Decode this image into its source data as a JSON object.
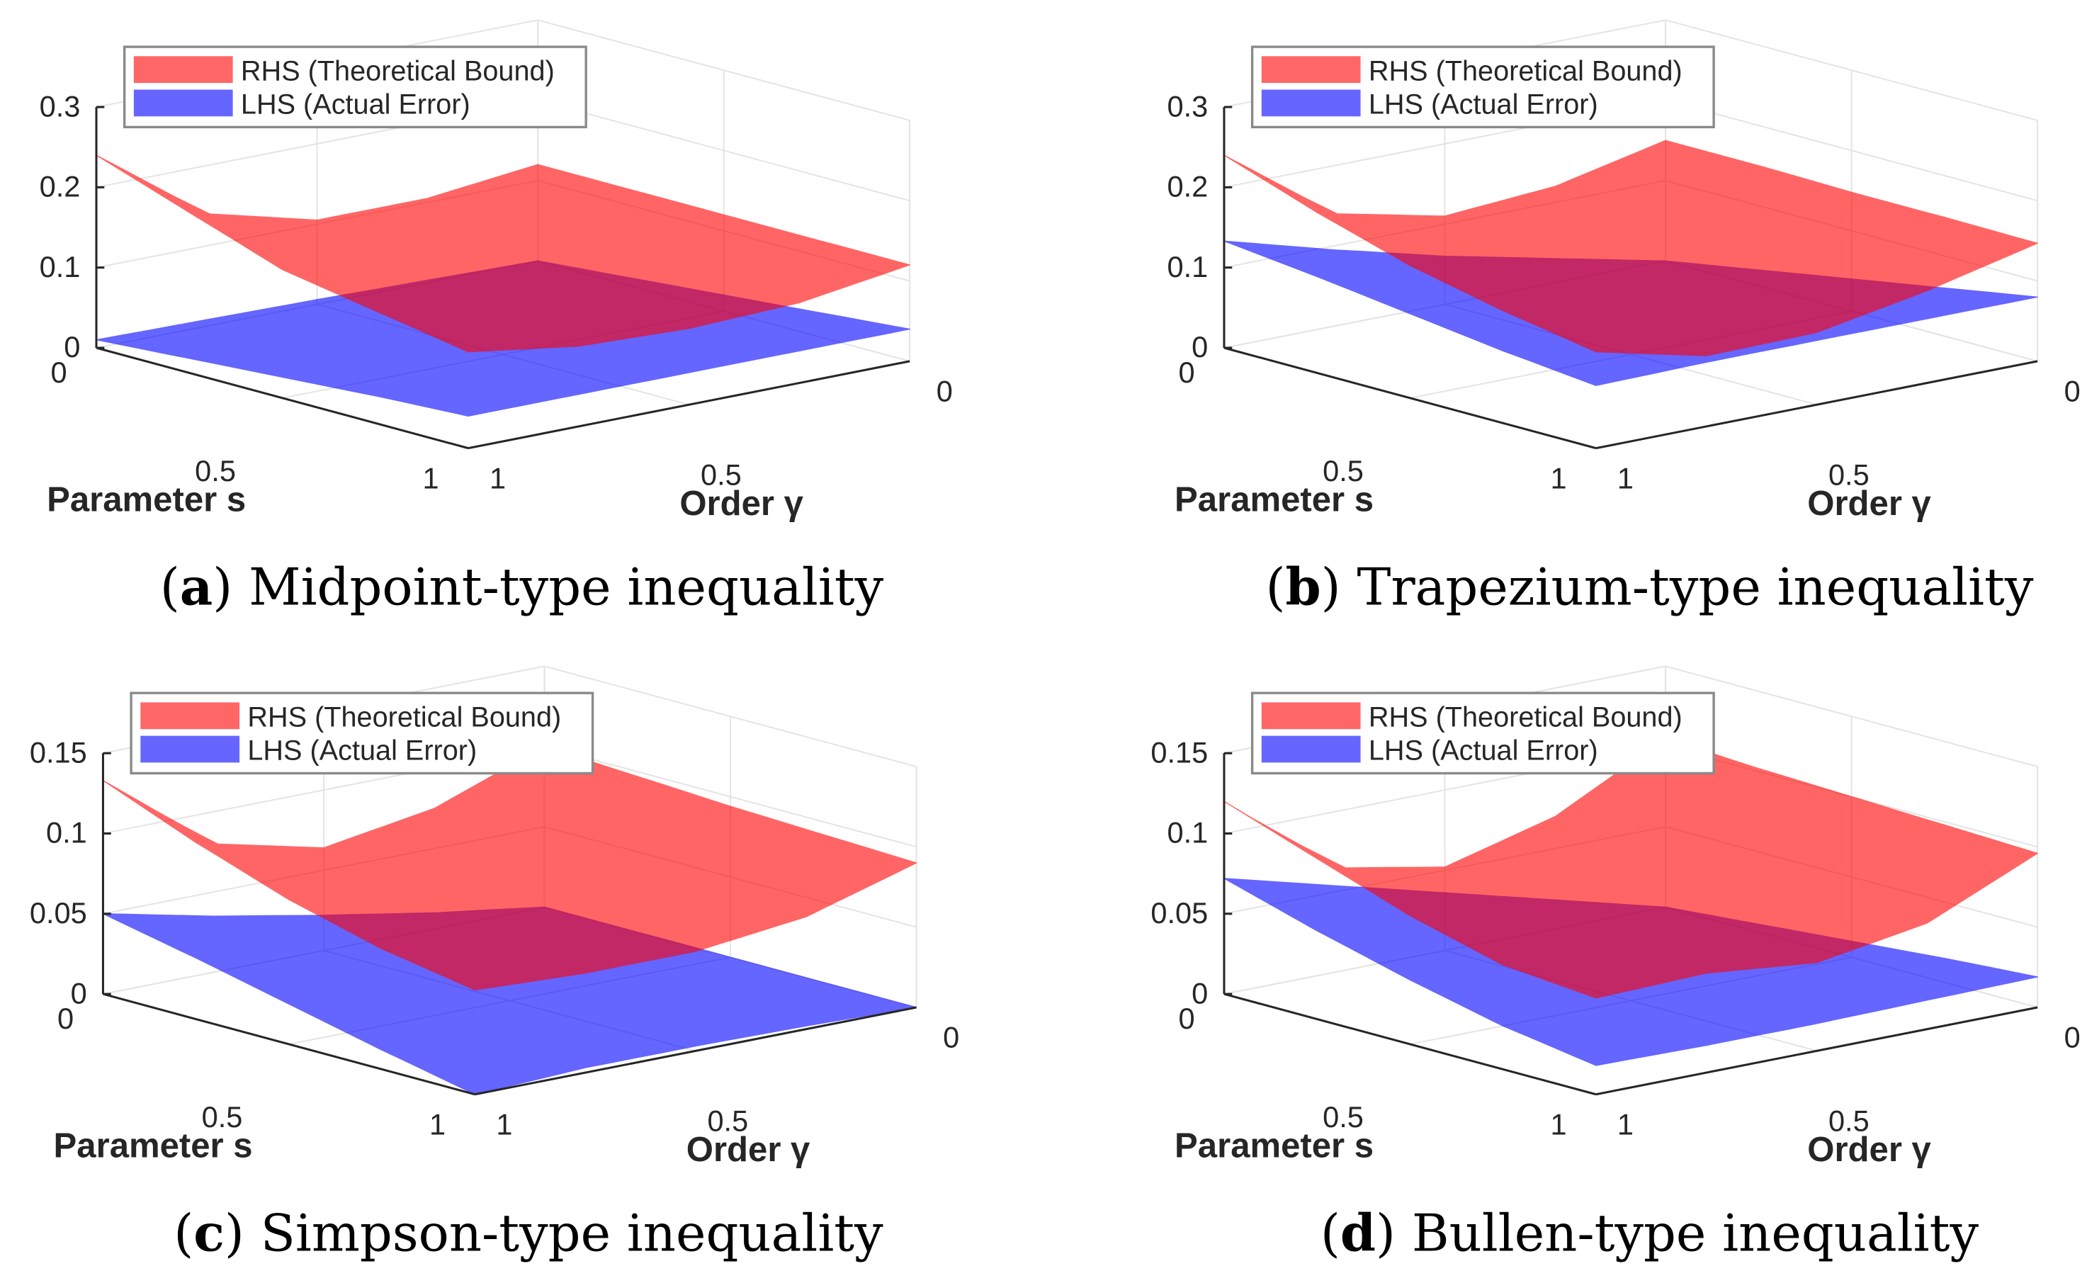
{
  "colors": {
    "rhs": "#ff0000",
    "lhs": "#0000ff",
    "surface_alpha": 0.6
  },
  "legend": {
    "rhs": "RHS (Theoretical Bound)",
    "lhs": "LHS (Actual Error)"
  },
  "chart_data": [
    {
      "type": "surface",
      "label": "a",
      "title": "Midpoint-type inequality",
      "xlabel": "Parameter s",
      "ylabel": "Order γ",
      "s_values": [
        0,
        0.25,
        0.5,
        0.75,
        1
      ],
      "gamma_values": [
        0,
        0.25,
        0.5,
        0.75,
        1
      ],
      "s_ticks": [
        "0",
        "0.5",
        "1"
      ],
      "gamma_ticks": [
        "0",
        "0.5",
        "1"
      ],
      "zlim": [
        0,
        0.3
      ],
      "z_ticks": [
        {
          "v": 0,
          "t": "0"
        },
        {
          "v": 0.1,
          "t": "0.1"
        },
        {
          "v": 0.2,
          "t": "0.2"
        },
        {
          "v": 0.3,
          "t": "0.3"
        }
      ],
      "legend_position": "top-left",
      "series": [
        {
          "name": "RHS (Theoretical Bound)",
          "z": [
            [
              0.12,
              0.105,
              0.105,
              0.14,
              0.24
            ],
            [
              0.12,
              0.1,
              0.1,
              0.12,
              0.2
            ],
            [
              0.12,
              0.1,
              0.095,
              0.11,
              0.16
            ],
            [
              0.12,
              0.1,
              0.095,
              0.1,
              0.14
            ],
            [
              0.12,
              0.1,
              0.095,
              0.1,
              0.12
            ]
          ]
        },
        {
          "name": "LHS (Actual Error)",
          "z": [
            [
              0,
              0.003,
              0.006,
              0.008,
              0.01
            ],
            [
              0.01,
              0.012,
              0.014,
              0.016,
              0.018
            ],
            [
              0.02,
              0.021,
              0.023,
              0.025,
              0.026
            ],
            [
              0.03,
              0.031,
              0.032,
              0.033,
              0.034
            ],
            [
              0.04,
              0.04,
              0.04,
              0.04,
              0.04
            ]
          ]
        }
      ]
    },
    {
      "type": "surface",
      "label": "b",
      "title": "Trapezium-type inequality",
      "xlabel": "Parameter s",
      "ylabel": "Order γ",
      "s_values": [
        0,
        0.25,
        0.5,
        0.75,
        1
      ],
      "gamma_values": [
        0,
        0.25,
        0.5,
        0.75,
        1
      ],
      "s_ticks": [
        "0",
        "0.5",
        "1"
      ],
      "gamma_ticks": [
        "0",
        "0.5",
        "1"
      ],
      "zlim": [
        0,
        0.3
      ],
      "z_ticks": [
        {
          "v": 0,
          "t": "0"
        },
        {
          "v": 0.1,
          "t": "0.1"
        },
        {
          "v": 0.2,
          "t": "0.2"
        },
        {
          "v": 0.3,
          "t": "0.3"
        }
      ],
      "legend_position": "top-left",
      "series": [
        {
          "name": "RHS (Theoretical Bound)",
          "z": [
            [
              0.15,
              0.12,
              0.11,
              0.14,
              0.24
            ],
            [
              0.15,
              0.12,
              0.105,
              0.12,
              0.2
            ],
            [
              0.148,
              0.115,
              0.1,
              0.105,
              0.165
            ],
            [
              0.148,
              0.115,
              0.095,
              0.095,
              0.14
            ],
            [
              0.147,
              0.115,
              0.09,
              0.088,
              0.12
            ]
          ]
        },
        {
          "name": "LHS (Actual Error)",
          "z": [
            [
              0,
              0.03,
              0.06,
              0.095,
              0.133
            ],
            [
              0.02,
              0.04,
              0.065,
              0.09,
              0.12
            ],
            [
              0.04,
              0.055,
              0.07,
              0.085,
              0.105
            ],
            [
              0.06,
              0.068,
              0.075,
              0.082,
              0.09
            ],
            [
              0.08,
              0.08,
              0.08,
              0.08,
              0.078
            ]
          ]
        }
      ]
    },
    {
      "type": "surface",
      "label": "c",
      "title": "Simpson-type inequality",
      "xlabel": "Parameter s",
      "ylabel": "Order γ",
      "s_values": [
        0,
        0.25,
        0.5,
        0.75,
        1
      ],
      "gamma_values": [
        0,
        0.25,
        0.5,
        0.75,
        1
      ],
      "s_ticks": [
        "0",
        "0.5",
        "1"
      ],
      "gamma_ticks": [
        "0",
        "0.5",
        "1"
      ],
      "zlim": [
        0,
        0.15
      ],
      "z_ticks": [
        {
          "v": 0,
          "t": "0"
        },
        {
          "v": 0.05,
          "t": "0.05"
        },
        {
          "v": 0.1,
          "t": "0.1"
        },
        {
          "v": 0.15,
          "t": "0.15"
        }
      ],
      "legend_position": "top-left",
      "series": [
        {
          "name": "RHS (Theoretical Bound)",
          "z": [
            [
              0.1,
              0.075,
              0.064,
              0.08,
              0.133
            ],
            [
              0.097,
              0.072,
              0.062,
              0.07,
              0.11
            ],
            [
              0.094,
              0.07,
              0.06,
              0.064,
              0.09
            ],
            [
              0.092,
              0.07,
              0.06,
              0.062,
              0.075
            ],
            [
              0.09,
              0.07,
              0.062,
              0.062,
              0.065
            ]
          ]
        },
        {
          "name": "LHS (Actual Error)",
          "z": [
            [
              0,
              0.01,
              0.022,
              0.035,
              0.05
            ],
            [
              0,
              0.008,
              0.017,
              0.027,
              0.038
            ],
            [
              0,
              0.005,
              0.011,
              0.018,
              0.025
            ],
            [
              0,
              0.003,
              0.006,
              0.009,
              0.012
            ],
            [
              0,
              0.002,
              0.003,
              0.003,
              0
            ]
          ]
        }
      ]
    },
    {
      "type": "surface",
      "label": "d",
      "title": "Bullen-type inequality",
      "xlabel": "Parameter s",
      "ylabel": "Order γ",
      "s_values": [
        0,
        0.25,
        0.5,
        0.75,
        1
      ],
      "gamma_values": [
        0,
        0.25,
        0.5,
        0.75,
        1
      ],
      "s_ticks": [
        "0",
        "0.5",
        "1"
      ],
      "gamma_ticks": [
        "0",
        "0.5",
        "1"
      ],
      "zlim": [
        0,
        0.15
      ],
      "z_ticks": [
        {
          "v": 0,
          "t": "0"
        },
        {
          "v": 0.05,
          "t": "0.05"
        },
        {
          "v": 0.1,
          "t": "0.1"
        },
        {
          "v": 0.15,
          "t": "0.15"
        }
      ],
      "legend_position": "top-left",
      "series": [
        {
          "name": "RHS (Theoretical Bound)",
          "z": [
            [
              0.105,
              0.07,
              0.052,
              0.065,
              0.12
            ],
            [
              0.102,
              0.068,
              0.05,
              0.058,
              0.1
            ],
            [
              0.1,
              0.066,
              0.05,
              0.055,
              0.08
            ],
            [
              0.098,
              0.066,
              0.052,
              0.055,
              0.065
            ],
            [
              0.096,
              0.066,
              0.055,
              0.062,
              0.06
            ]
          ]
        },
        {
          "name": "LHS (Actual Error)",
          "z": [
            [
              0,
              0.018,
              0.036,
              0.054,
              0.072
            ],
            [
              0.005,
              0.018,
              0.031,
              0.043,
              0.055
            ],
            [
              0.01,
              0.018,
              0.026,
              0.033,
              0.04
            ],
            [
              0.015,
              0.018,
              0.021,
              0.024,
              0.027
            ],
            [
              0.019,
              0.018,
              0.017,
              0.017,
              0.018
            ]
          ]
        }
      ]
    }
  ]
}
